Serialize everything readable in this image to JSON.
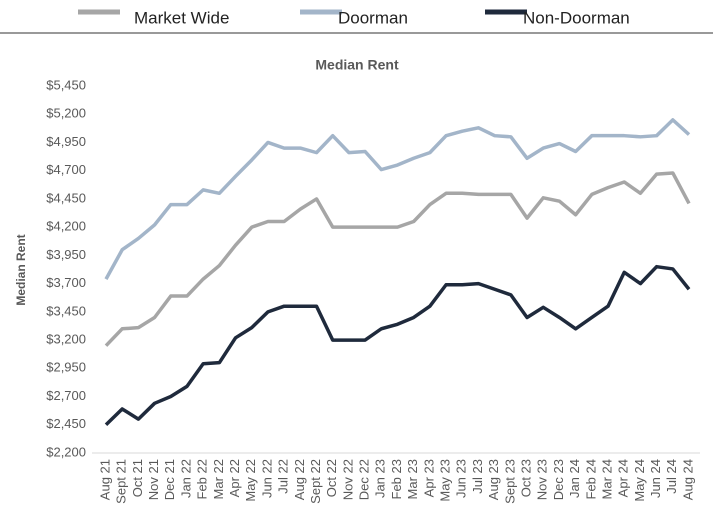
{
  "chart_data": {
    "type": "line",
    "title": "Median Rent",
    "y_label": "Median Rent",
    "categories": [
      "Aug 21",
      "Sept 21",
      "Oct 21",
      "Nov 21",
      "Dec 21",
      "Jan 22",
      "Feb 22",
      "Mar 22",
      "Apr 22",
      "May 22",
      "Jun 22",
      "Jul 22",
      "Aug 22",
      "Sept 22",
      "Oct 22",
      "Nov 22",
      "Dec 22",
      "Jan 23",
      "Feb 23",
      "Mar 23",
      "Apr 23",
      "May 23",
      "Jun 23",
      "Jul 23",
      "Aug 23",
      "Sept 23",
      "Oct 23",
      "Nov 23",
      "Dec 23",
      "Jan 24",
      "Feb 24",
      "Mar 24",
      "Apr 24",
      "May 24",
      "Jun 24",
      "Jul 24",
      "Aug 24"
    ],
    "series": [
      {
        "name": "Market Wide",
        "color": "#a6a6a6",
        "values": [
          3150,
          3300,
          3310,
          3400,
          3590,
          3590,
          3740,
          3860,
          4040,
          4200,
          4250,
          4250,
          4360,
          4450,
          4200,
          4200,
          4200,
          4200,
          4200,
          4250,
          4400,
          4500,
          4500,
          4490,
          4490,
          4490,
          4280,
          4460,
          4430,
          4310,
          4490,
          4550,
          4600,
          4500,
          4670,
          4680,
          4410
        ]
      },
      {
        "name": "Doorman",
        "color": "#a3b5c9",
        "values": [
          3740,
          4000,
          4100,
          4220,
          4400,
          4400,
          4530,
          4500,
          4650,
          4795,
          4950,
          4900,
          4900,
          4860,
          5010,
          4860,
          4870,
          4710,
          4750,
          4810,
          4860,
          5010,
          5050,
          5080,
          5010,
          5000,
          4810,
          4900,
          4940,
          4870,
          5010,
          5010,
          5010,
          5000,
          5010,
          5150,
          5020
        ]
      },
      {
        "name": "Non-Doorman",
        "color": "#1f2a3c",
        "values": [
          2450,
          2590,
          2500,
          2640,
          2700,
          2790,
          2990,
          3000,
          3220,
          3310,
          3450,
          3500,
          3500,
          3500,
          3200,
          3200,
          3200,
          3300,
          3340,
          3400,
          3500,
          3690,
          3690,
          3700,
          3650,
          3600,
          3400,
          3490,
          3400,
          3300,
          3400,
          3500,
          3800,
          3700,
          3850,
          3830,
          3650
        ]
      }
    ],
    "ylim": [
      2200,
      5450
    ],
    "yticks": [
      {
        "value": 2200,
        "label": "$2,200"
      },
      {
        "value": 2450,
        "label": "$2,450"
      },
      {
        "value": 2700,
        "label": "$2,700"
      },
      {
        "value": 2950,
        "label": "$2,950"
      },
      {
        "value": 3200,
        "label": "$3,200"
      },
      {
        "value": 3450,
        "label": "$3,450"
      },
      {
        "value": 3700,
        "label": "$3,700"
      },
      {
        "value": 3950,
        "label": "$3,950"
      },
      {
        "value": 4200,
        "label": "$4,200"
      },
      {
        "value": 4450,
        "label": "$4,450"
      },
      {
        "value": 4700,
        "label": "$4,700"
      },
      {
        "value": 4950,
        "label": "$4,950"
      },
      {
        "value": 5200,
        "label": "$5,200"
      },
      {
        "value": 5450,
        "label": "$5,450"
      }
    ],
    "grid": false,
    "legend": "top"
  }
}
